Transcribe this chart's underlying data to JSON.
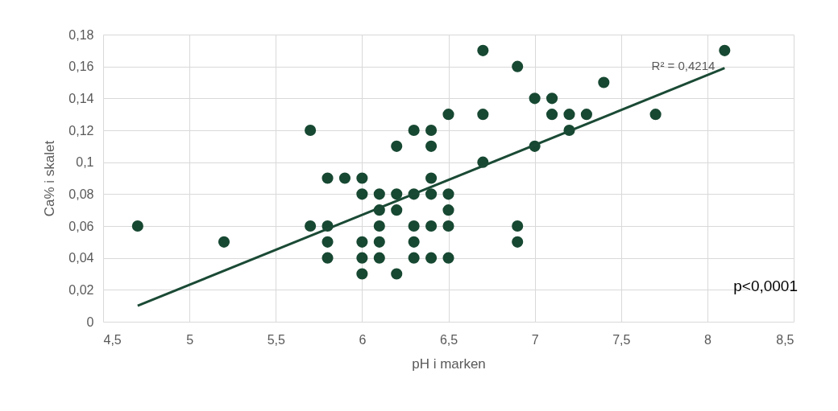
{
  "chart_data": {
    "type": "scatter",
    "xlabel": "pH i marken",
    "ylabel": "Ca% i skalet",
    "xlim": [
      4.5,
      8.5
    ],
    "ylim": [
      0,
      0.18
    ],
    "xticks": [
      {
        "value": 4.5,
        "label": "4,5"
      },
      5,
      {
        "value": 5.5,
        "label": "5,5"
      },
      6,
      {
        "value": 6.5,
        "label": "6,5"
      },
      7,
      {
        "value": 7.5,
        "label": "7,5"
      },
      8,
      {
        "value": 8.5,
        "label": "8,5"
      }
    ],
    "yticks": [
      0,
      {
        "value": 0.02,
        "label": "0,02"
      },
      {
        "value": 0.04,
        "label": "0,04"
      },
      {
        "value": 0.06,
        "label": "0,06"
      },
      {
        "value": 0.08,
        "label": "0,08"
      },
      {
        "value": 0.1,
        "label": "0,1"
      },
      {
        "value": 0.12,
        "label": "0,12"
      },
      {
        "value": 0.14,
        "label": "0,14"
      },
      {
        "value": 0.16,
        "label": "0,16"
      },
      {
        "value": 0.18,
        "label": "0,18"
      }
    ],
    "grid": true,
    "series": [
      {
        "marker": "circle",
        "color": "#174832",
        "x": [
          4.7,
          5.2,
          5.7,
          5.7,
          5.8,
          5.8,
          5.8,
          5.8,
          5.9,
          6.0,
          6.0,
          6.0,
          6.0,
          6.0,
          6.1,
          6.1,
          6.1,
          6.1,
          6.1,
          6.2,
          6.2,
          6.2,
          6.2,
          6.3,
          6.3,
          6.3,
          6.3,
          6.3,
          6.4,
          6.4,
          6.4,
          6.4,
          6.4,
          6.4,
          6.5,
          6.5,
          6.5,
          6.5,
          6.5,
          6.7,
          6.7,
          6.7,
          6.9,
          6.9,
          6.9,
          7.0,
          7.0,
          7.1,
          7.1,
          7.2,
          7.2,
          7.3,
          7.4,
          7.7,
          8.1
        ],
        "values": [
          0.06,
          0.05,
          0.12,
          0.06,
          0.09,
          0.06,
          0.05,
          0.04,
          0.09,
          0.09,
          0.08,
          0.05,
          0.04,
          0.03,
          0.08,
          0.07,
          0.06,
          0.05,
          0.04,
          0.11,
          0.08,
          0.07,
          0.03,
          0.12,
          0.08,
          0.06,
          0.05,
          0.04,
          0.12,
          0.11,
          0.09,
          0.08,
          0.06,
          0.04,
          0.13,
          0.08,
          0.07,
          0.06,
          0.04,
          0.17,
          0.13,
          0.1,
          0.16,
          0.06,
          0.05,
          0.14,
          0.11,
          0.14,
          0.13,
          0.13,
          0.12,
          0.13,
          0.15,
          0.13,
          0.17
        ]
      },
      {
        "type": "line",
        "color": "#1a4a35",
        "x": [
          4.7,
          8.1
        ],
        "values": [
          0.01,
          0.159
        ]
      }
    ],
    "annotations": [
      "R² = 0,4214",
      "p<0,0001"
    ]
  }
}
